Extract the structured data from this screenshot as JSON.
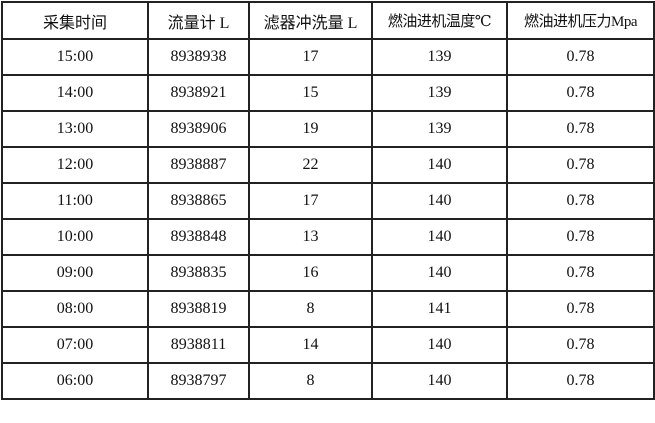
{
  "table": {
    "headers": [
      "采集时间",
      "流量计 L",
      "滤器冲洗量 L",
      "燃油进机温度℃",
      "燃油进机压力Mpa"
    ],
    "rows": [
      [
        "15:00",
        "8938938",
        "17",
        "139",
        "0.78"
      ],
      [
        "14:00",
        "8938921",
        "15",
        "139",
        "0.78"
      ],
      [
        "13:00",
        "8938906",
        "19",
        "139",
        "0.78"
      ],
      [
        "12:00",
        "8938887",
        "22",
        "140",
        "0.78"
      ],
      [
        "11:00",
        "8938865",
        "17",
        "140",
        "0.78"
      ],
      [
        "10:00",
        "8938848",
        "13",
        "140",
        "0.78"
      ],
      [
        "09:00",
        "8938835",
        "16",
        "140",
        "0.78"
      ],
      [
        "08:00",
        "8938819",
        "8",
        "141",
        "0.78"
      ],
      [
        "07:00",
        "8938811",
        "14",
        "140",
        "0.78"
      ],
      [
        "06:00",
        "8938797",
        "8",
        "140",
        "0.78"
      ]
    ]
  }
}
